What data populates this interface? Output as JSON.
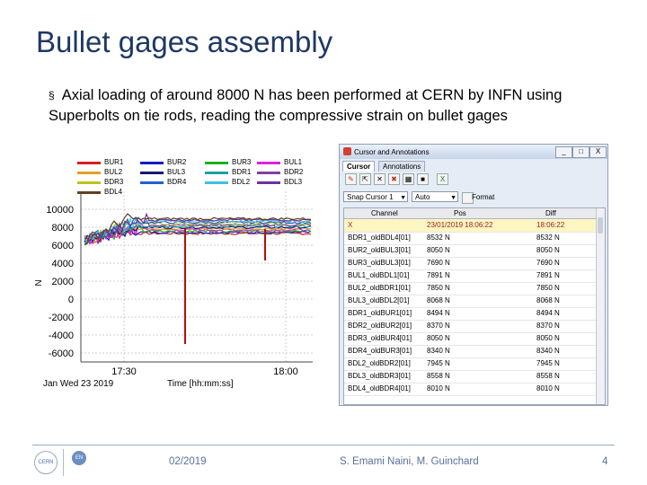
{
  "slide": {
    "title": "Bullet gages assembly",
    "bullet_marker": "§",
    "bullet_text": "Axial loading of around 8000 N has been performed at CERN by INFN using Superbolts on tie rods, reading the compressive strain on bullet gages"
  },
  "chart_data": {
    "type": "line",
    "ylabel": "N",
    "xlabel": "Time  [hh:mm:ss]",
    "x_date_label": "Jan Wed 23 2019",
    "x_ticks": [
      "17:30",
      "18:00"
    ],
    "y_ticks": [
      "10000",
      "8000",
      "6000",
      "4000",
      "2000",
      "0",
      "-2000",
      "-4000",
      "-6000"
    ],
    "ylim": [
      -7000,
      11000
    ],
    "legend": [
      {
        "name": "BUR1",
        "color": "#d42020"
      },
      {
        "name": "BUR2",
        "color": "#1020c0"
      },
      {
        "name": "BUR3",
        "color": "#20b020"
      },
      {
        "name": "BUL1",
        "color": "#e020e0"
      },
      {
        "name": "BUL2",
        "color": "#e0a020"
      },
      {
        "name": "BUL3",
        "color": "#1a1a6a"
      },
      {
        "name": "BDR1",
        "color": "#20a0a0"
      },
      {
        "name": "BDR2",
        "color": "#8040a0"
      },
      {
        "name": "BDR3",
        "color": "#c0c020"
      },
      {
        "name": "BDR4",
        "color": "#2060d0"
      },
      {
        "name": "BDL2",
        "color": "#40c0e0"
      },
      {
        "name": "BDL3",
        "color": "#7030a0"
      },
      {
        "name": "BDL4",
        "color": "#604020"
      }
    ]
  },
  "panel": {
    "title": "Cursor and Annotations",
    "window_buttons": [
      "_",
      "□",
      "X"
    ],
    "tabs": [
      "Cursor",
      "Annotations"
    ],
    "snap_value": "Snap Cursor 1",
    "mode_value": "Auto",
    "format_label": "Format",
    "columns": [
      "Channel",
      "Pos",
      "Diff"
    ],
    "rows": [
      {
        "channel": "X",
        "pos": "23/01/2019 18:06:22",
        "diff": "18:06:22"
      },
      {
        "channel": "BDR1_oldBDL4[01]",
        "pos": "8532 N",
        "diff": "8532 N"
      },
      {
        "channel": "BUR2_oldBUL3[01]",
        "pos": "8050 N",
        "diff": "8050 N"
      },
      {
        "channel": "BUR3_oldBUL3[01]",
        "pos": "7690 N",
        "diff": "7690 N"
      },
      {
        "channel": "BUL1_oldBDL1[01]",
        "pos": "7891 N",
        "diff": "7891 N"
      },
      {
        "channel": "BUL2_oldBDR1[01]",
        "pos": "7850 N",
        "diff": "7850 N"
      },
      {
        "channel": "BUL3_oldBDL2[01]",
        "pos": "8068 N",
        "diff": "8068 N"
      },
      {
        "channel": "BDR1_oldBUR1[01]",
        "pos": "8494 N",
        "diff": "8494 N"
      },
      {
        "channel": "BDR2_oldBUR2[01]",
        "pos": "8370 N",
        "diff": "8370 N"
      },
      {
        "channel": "BDR3_oldBUR4[01]",
        "pos": "8050 N",
        "diff": "8050 N"
      },
      {
        "channel": "BDR4_oldBUR3[01]",
        "pos": "8340 N",
        "diff": "8340 N"
      },
      {
        "channel": "BDL2_oldBDR2[01]",
        "pos": "7945 N",
        "diff": "7945 N"
      },
      {
        "channel": "BDL3_oldBDR3[01]",
        "pos": "8558 N",
        "diff": "8558 N"
      },
      {
        "channel": "BDL4_oldBDR4[01]",
        "pos": "8010 N",
        "diff": "8010 N"
      }
    ]
  },
  "footer": {
    "logo1_text": "CERN",
    "logo2_text": "EN",
    "date": "02/2019",
    "authors": "S. Emami Naini, M. Guinchard",
    "page": "4"
  }
}
